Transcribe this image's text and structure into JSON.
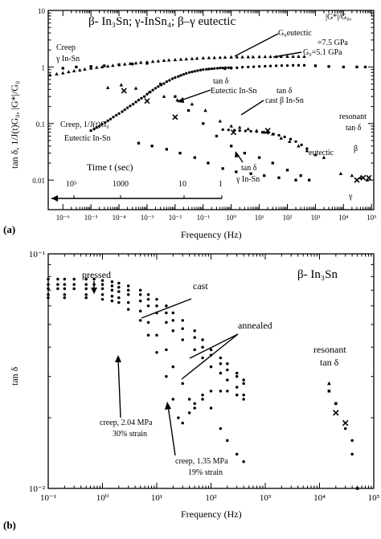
{
  "chart_data": [
    {
      "type": "scatter",
      "panel_label": "(a)",
      "title": "β- In₃Sn;  γ-InSn₄;  β–γ eutectic",
      "xlabel": "Frequency (Hz)",
      "ylabel": "tan δ, 1/J(t)G₀, |G*|/G₀",
      "x_scale": "log",
      "y_scale": "log",
      "xlim": [
        3e-07,
        120000.0
      ],
      "ylim": [
        0.003,
        10
      ],
      "x_ticks": [
        "10⁻⁶",
        "10⁻⁵",
        "10⁻⁴",
        "10⁻³",
        "10⁻²",
        "10⁻¹",
        "10⁰",
        "10¹",
        "10²",
        "10³",
        "10⁴",
        "10⁵"
      ],
      "y_ticks": [
        "0.01",
        "0.1",
        "1",
        "10"
      ],
      "time_axis": {
        "label": "Time t (sec)",
        "ticks": [
          "10⁵",
          "1000",
          "10",
          "1"
        ]
      },
      "annotations": {
        "creep_gamma": [
          "Creep",
          "γ In-Sn"
        ],
        "creep_eut": [
          "Creep, 1/J(t)G₀",
          "Eutectic In-Sn"
        ],
        "tan_eut": [
          "tan δ",
          "Eutectic In-Sn"
        ],
        "tan_cast": [
          "tan δ",
          "cast β In-Sn"
        ],
        "tan_gamma": [
          "tan δ",
          "γ In-Sn"
        ],
        "g_ratio": "|G*|/G₀,",
        "g_eut": "G₀eutectic",
        "g_eut_val": "=7.5 GPa",
        "g_five": "G₀=5.1 GPa",
        "resonant": [
          "resonant",
          "tan δ"
        ],
        "beta_sym": "β",
        "gamma_sym": "γ",
        "eutectic_lbl": "eutectic"
      },
      "series": [
        {
          "marker": "triangle",
          "x": [
            3.5e-07,
            6e-07,
            1e-06,
            1.6e-06,
            2.5e-06,
            4e-06,
            6e-06,
            1e-05,
            1.6e-05,
            2.5e-05,
            4e-05,
            6e-05,
            0.0001,
            0.00016,
            0.00025,
            0.0004,
            0.0006,
            0.001,
            0.0016,
            0.0025,
            0.004,
            0.006,
            0.01,
            0.016,
            0.025,
            0.04,
            0.06,
            0.1,
            0.16,
            0.25,
            0.4,
            0.6,
            1,
            1.6,
            2.5,
            4,
            6,
            10,
            16,
            25,
            40,
            60,
            100,
            160,
            250,
            400
          ],
          "y": [
            0.72,
            0.75,
            0.78,
            0.82,
            0.85,
            0.88,
            0.91,
            0.95,
            0.98,
            1.0,
            1.03,
            1.06,
            1.09,
            1.12,
            1.15,
            1.17,
            1.2,
            1.22,
            1.25,
            1.27,
            1.3,
            1.32,
            1.34,
            1.36,
            1.38,
            1.4,
            1.42,
            1.44,
            1.45,
            1.46,
            1.47,
            1.48,
            1.49,
            1.5,
            1.5,
            1.51,
            1.51,
            1.52,
            1.52,
            1.52,
            1.52,
            1.53,
            1.53,
            1.53,
            1.53,
            1.53
          ]
        },
        {
          "marker": "dot",
          "x": [
            1e-05,
            1.3e-05,
            1.6e-05,
            2e-05,
            2.5e-05,
            3.2e-05,
            4e-05,
            5e-05,
            6.3e-05,
            8e-05,
            0.0001,
            0.00013,
            0.00016,
            0.0002,
            0.00025,
            0.00032,
            0.0004,
            0.0005,
            0.00063,
            0.0008,
            0.001,
            0.0013,
            0.0016,
            0.002,
            0.0025,
            0.0032,
            0.004,
            0.005,
            0.0063,
            0.008,
            0.01,
            0.013,
            0.016,
            0.02,
            0.025,
            0.032,
            0.04,
            0.05,
            0.063,
            0.08,
            0.1,
            0.13,
            0.16,
            0.2,
            0.25,
            0.32,
            0.4,
            0.5,
            0.63,
            0.8,
            1
          ],
          "y": [
            0.075,
            0.08,
            0.085,
            0.09,
            0.097,
            0.104,
            0.112,
            0.12,
            0.13,
            0.14,
            0.15,
            0.162,
            0.175,
            0.19,
            0.205,
            0.22,
            0.24,
            0.26,
            0.28,
            0.3,
            0.33,
            0.36,
            0.39,
            0.42,
            0.45,
            0.48,
            0.51,
            0.55,
            0.58,
            0.62,
            0.65,
            0.68,
            0.71,
            0.74,
            0.77,
            0.8,
            0.82,
            0.84,
            0.86,
            0.88,
            0.9,
            0.91,
            0.92,
            0.93,
            0.94,
            0.95,
            0.96,
            0.96,
            0.97,
            0.97,
            0.97
          ]
        },
        {
          "marker": "dot",
          "x": [
            0.5,
            0.8,
            1.3,
            2,
            3.2,
            5,
            8,
            13,
            20,
            32,
            50,
            80,
            130,
            200,
            320,
            500
          ],
          "y": [
            0.078,
            0.077,
            0.076,
            0.075,
            0.074,
            0.073,
            0.072,
            0.07,
            0.068,
            0.065,
            0.062,
            0.058,
            0.053,
            0.048,
            0.042,
            0.036
          ]
        },
        {
          "marker": "dot",
          "x": [
            0.6,
            1,
            1.6,
            2.5,
            4,
            6.3,
            10,
            16,
            25,
            40,
            63,
            100,
            160,
            250,
            400
          ],
          "y": [
            0.93,
            0.95,
            0.97,
            0.99,
            1.0,
            1.01,
            1.02,
            1.03,
            1.04,
            1.05,
            1.06,
            1.06,
            1.07,
            1.07,
            1.07
          ]
        },
        {
          "marker": "square",
          "x": [
            1e-06,
            3e-06,
            1e-05,
            3e-05,
            0.0001,
            0.0003,
            0.001,
            0.003,
            0.01,
            0.03,
            0.1,
            0.3,
            1,
            3,
            10,
            30,
            100,
            300,
            1000,
            3000,
            10000,
            30000,
            60000
          ],
          "y": [
            0.95,
            1.0,
            1.02,
            1.05,
            1.1,
            1.13,
            1.16,
            0.5,
            0.3,
            0.17,
            0.1,
            0.06,
            0.04,
            0.03,
            0.025,
            0.02,
            0.015,
            0.012,
            1.05,
            1.02,
            1.0,
            1.0,
            1.0
          ]
        },
        {
          "marker": "triangle",
          "x": [
            4e-05,
            0.00012,
            0.0004,
            0.0012,
            0.004,
            0.012,
            0.04,
            0.12,
            0.4,
            1,
            2,
            4,
            8,
            15,
            30,
            60,
            120,
            250,
            500,
            1000,
            2000,
            8000,
            20000,
            40000,
            70000
          ],
          "y": [
            0.43,
            0.48,
            0.42,
            0.36,
            0.3,
            0.26,
            0.22,
            0.17,
            0.11,
            0.09,
            0.085,
            0.08,
            0.075,
            0.07,
            0.065,
            0.055,
            0.048,
            0.04,
            0.033,
            0.028,
            0.025,
            0.013,
            0.012,
            0.011,
            0.01
          ]
        },
        {
          "marker": "cross",
          "x": [
            0.00015,
            0.001,
            0.01,
            1.2,
            20,
            30000,
            50000,
            80000
          ],
          "y": [
            0.38,
            0.25,
            0.13,
            0.07,
            0.075,
            0.01,
            0.011,
            0.011
          ]
        },
        {
          "marker": "square",
          "x": [
            0.0005,
            0.0015,
            0.005,
            0.015,
            0.05,
            0.15,
            0.5,
            1.5,
            5,
            15,
            50,
            200,
            600
          ],
          "y": [
            0.045,
            0.04,
            0.035,
            0.03,
            0.025,
            0.02,
            0.016,
            0.014,
            0.013,
            0.012,
            0.011,
            0.01,
            0.01
          ]
        }
      ]
    },
    {
      "type": "scatter",
      "panel_label": "(b)",
      "title": "β- In₃Sn",
      "xlabel": "Frequency (Hz)",
      "ylabel": "tan δ",
      "x_scale": "log",
      "y_scale": "log",
      "xlim": [
        0.1,
        100000
      ],
      "ylim": [
        0.01,
        0.1
      ],
      "x_ticks": [
        "10⁻¹",
        "10⁰",
        "10¹",
        "10²",
        "10³",
        "10⁴",
        "10⁵"
      ],
      "y_ticks": [
        "10⁻²",
        "10⁻¹"
      ],
      "annotations": {
        "pressed": "pressed",
        "cast": "cast",
        "annealed": "annealed",
        "creep1": [
          "creep, 2.04 MPa",
          "30% strain"
        ],
        "creep2": [
          "creep, 1.35 MPa",
          "19% strain"
        ],
        "resonant": [
          "resonant",
          "tan δ"
        ]
      },
      "series": [
        {
          "name": "cast",
          "marker": "dot",
          "x": [
            0.1,
            0.15,
            0.2,
            0.3,
            0.5,
            0.7,
            1,
            1.5,
            2,
            3,
            5,
            7,
            10,
            15,
            20,
            30,
            50,
            70,
            100,
            150,
            200,
            300,
            400
          ],
          "y": [
            0.078,
            0.078,
            0.078,
            0.078,
            0.078,
            0.078,
            0.077,
            0.076,
            0.075,
            0.073,
            0.07,
            0.067,
            0.064,
            0.06,
            0.056,
            0.052,
            0.047,
            0.043,
            0.039,
            0.036,
            0.034,
            0.031,
            0.029
          ]
        },
        {
          "name": "pressed",
          "marker": "dot",
          "x": [
            0.1,
            0.15,
            0.2,
            0.3,
            0.5,
            0.7,
            1,
            1.5,
            2,
            3,
            5,
            7,
            10,
            15,
            20,
            30,
            50,
            70,
            100,
            150,
            200,
            300,
            400
          ],
          "y": [
            0.074,
            0.074,
            0.074,
            0.074,
            0.074,
            0.074,
            0.074,
            0.073,
            0.072,
            0.07,
            0.067,
            0.064,
            0.06,
            0.056,
            0.052,
            0.048,
            0.044,
            0.04,
            0.037,
            0.034,
            0.032,
            0.03,
            0.028
          ]
        },
        {
          "name": "annealed",
          "marker": "dot",
          "x": [
            0.1,
            0.15,
            0.2,
            0.3,
            0.5,
            0.7,
            1,
            1.5,
            2,
            3,
            5,
            7,
            10,
            15,
            20,
            30,
            50,
            70,
            100,
            150,
            200,
            300,
            400
          ],
          "y": [
            0.071,
            0.071,
            0.071,
            0.071,
            0.071,
            0.071,
            0.071,
            0.07,
            0.069,
            0.067,
            0.063,
            0.06,
            0.056,
            0.051,
            0.047,
            0.043,
            0.039,
            0.036,
            0.033,
            0.031,
            0.029,
            0.027,
            0.025
          ]
        },
        {
          "name": "creep, 2.04 MPa",
          "marker": "dot",
          "x": [
            0.1,
            0.2,
            0.5,
            1,
            1.5,
            2,
            3,
            5,
            7,
            10,
            15,
            20,
            30,
            40,
            50,
            70,
            100,
            150,
            200,
            300,
            400
          ],
          "y": [
            0.067,
            0.067,
            0.067,
            0.067,
            0.066,
            0.065,
            0.062,
            0.057,
            0.051,
            0.045,
            0.039,
            0.033,
            0.028,
            0.024,
            0.022,
            0.024,
            0.026,
            0.026,
            0.026,
            0.025,
            0.024
          ]
        },
        {
          "name": "creep, 1.35 MPa",
          "marker": "dot",
          "x": [
            0.1,
            0.2,
            0.5,
            1,
            1.5,
            2,
            3,
            5,
            7,
            10,
            15,
            20,
            25,
            30,
            40,
            50,
            70,
            100,
            150,
            200,
            300,
            400
          ],
          "y": [
            0.065,
            0.065,
            0.065,
            0.064,
            0.063,
            0.062,
            0.058,
            0.052,
            0.045,
            0.038,
            0.03,
            0.024,
            0.02,
            0.019,
            0.021,
            0.023,
            0.025,
            0.022,
            0.018,
            0.016,
            0.014,
            0.013
          ]
        },
        {
          "name": "resonant tan δ",
          "marker": "mixed",
          "x": [
            15000,
            15000,
            20000,
            20000,
            30000,
            30000,
            40000,
            40000,
            50000
          ],
          "y": [
            0.028,
            0.026,
            0.023,
            0.021,
            0.019,
            0.018,
            0.016,
            0.014,
            0.01
          ]
        }
      ]
    }
  ]
}
